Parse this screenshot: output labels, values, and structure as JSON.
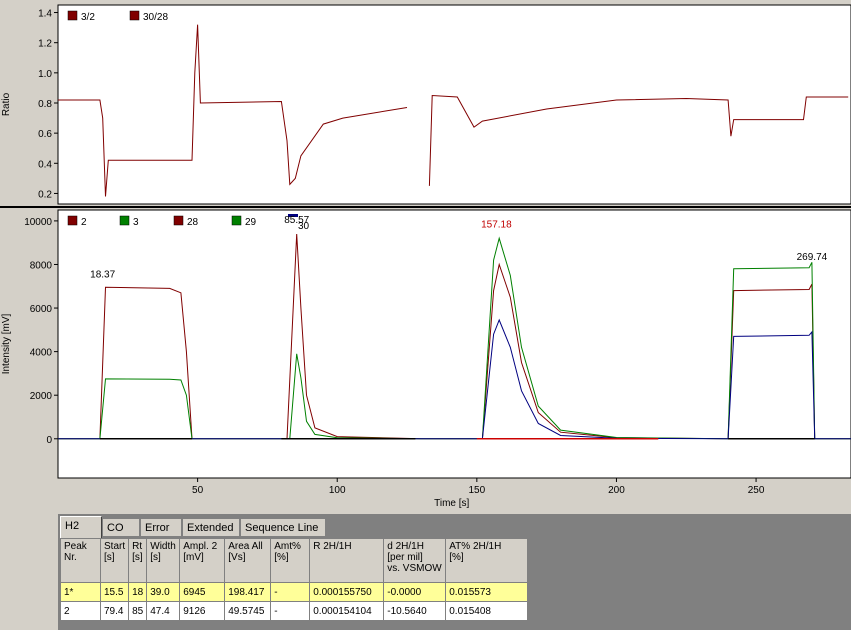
{
  "chart_data": [
    {
      "type": "line",
      "ylabel": "Ratio",
      "ylim": [
        0.13,
        1.45
      ],
      "yticks": [
        "1.4",
        "1.2",
        "1.0",
        "0.8",
        "0.6",
        "0.4",
        "0.2"
      ],
      "legend": [
        {
          "name": "3/2",
          "color": "#800000"
        },
        {
          "name": "30/28",
          "color": "#800000"
        }
      ],
      "series": [
        {
          "name": "30/28",
          "color": "#800000",
          "points": [
            [
              0,
              0.82
            ],
            [
              15,
              0.82
            ],
            [
              16,
              0.7
            ],
            [
              17,
              0.18
            ],
            [
              18,
              0.42
            ],
            [
              48,
              0.42
            ],
            [
              49,
              1.0
            ],
            [
              50,
              1.32
            ],
            [
              51,
              0.8
            ],
            [
              80,
              0.81
            ],
            [
              82,
              0.55
            ],
            [
              83,
              0.26
            ],
            [
              85,
              0.3
            ],
            [
              87,
              0.45
            ],
            [
              95,
              0.66
            ],
            [
              102,
              0.7
            ],
            [
              125,
              0.77
            ],
            [
              126,
              null
            ],
            [
              133,
              0.25
            ],
            [
              134,
              0.85
            ],
            [
              143,
              0.84
            ],
            [
              149,
              0.64
            ],
            [
              152,
              0.68
            ],
            [
              175,
              0.76
            ],
            [
              200,
              0.82
            ],
            [
              225,
              0.83
            ],
            [
              240,
              0.82
            ],
            [
              241,
              0.58
            ],
            [
              242,
              0.69
            ],
            [
              267,
              0.69
            ],
            [
              268,
              0.84
            ],
            [
              283,
              0.84
            ]
          ]
        }
      ]
    },
    {
      "type": "line",
      "xlabel": "Time [s]",
      "ylabel": "Intensity [mV]",
      "xlim": [
        0,
        284
      ],
      "ylim": [
        -1800,
        10500
      ],
      "xticks": [
        "50",
        "100",
        "150",
        "200",
        "250"
      ],
      "yticks": [
        "10000",
        "8000",
        "6000",
        "4000",
        "2000",
        "0"
      ],
      "legend": [
        {
          "name": "2",
          "color": "#800000"
        },
        {
          "name": "3",
          "color": "#008000"
        },
        {
          "name": "28",
          "color": "#800000"
        },
        {
          "name": "29",
          "color": "#008000"
        },
        {
          "name": "30",
          "color": "#000080"
        }
      ],
      "annotations": [
        {
          "text": "18.37",
          "x": 16,
          "y": 7400,
          "color": "#000000"
        },
        {
          "text": "85.57",
          "x": 85.5,
          "y": 9900,
          "color": "#000000"
        },
        {
          "text": "157.18",
          "x": 157,
          "y": 9700,
          "color": "#c00000"
        },
        {
          "text": "269.74",
          "x": 270,
          "y": 8200,
          "color": "#000000"
        }
      ],
      "series": [
        {
          "name": "2",
          "color": "#800000",
          "points": [
            [
              0,
              0
            ],
            [
              15,
              0
            ],
            [
              17,
              6950
            ],
            [
              40,
              6900
            ],
            [
              44,
              6700
            ],
            [
              46,
              4000
            ],
            [
              48,
              0
            ],
            [
              82,
              0
            ],
            [
              85.5,
              9400
            ],
            [
              87,
              6000
            ],
            [
              89,
              2000
            ],
            [
              92,
              500
            ],
            [
              100,
              100
            ],
            [
              130,
              0
            ],
            [
              152,
              0
            ],
            [
              156,
              6800
            ],
            [
              158,
              8000
            ],
            [
              162,
              6500
            ],
            [
              166,
              3500
            ],
            [
              172,
              1200
            ],
            [
              180,
              300
            ],
            [
              200,
              50
            ],
            [
              240,
              0
            ],
            [
              242,
              6800
            ],
            [
              269,
              6850
            ],
            [
              270,
              7100
            ],
            [
              271,
              0
            ],
            [
              284,
              0
            ]
          ]
        },
        {
          "name": "3",
          "color": "#008000",
          "points": [
            [
              0,
              0
            ],
            [
              15,
              0
            ],
            [
              17,
              2750
            ],
            [
              40,
              2730
            ],
            [
              44,
              2700
            ],
            [
              46,
              2000
            ],
            [
              48,
              0
            ],
            [
              83,
              0
            ],
            [
              85.5,
              3900
            ],
            [
              87,
              2800
            ],
            [
              89,
              800
            ],
            [
              92,
              200
            ],
            [
              100,
              50
            ],
            [
              130,
              0
            ],
            [
              152,
              0
            ],
            [
              156,
              8200
            ],
            [
              158,
              9200
            ],
            [
              162,
              7500
            ],
            [
              166,
              4200
            ],
            [
              172,
              1500
            ],
            [
              180,
              400
            ],
            [
              200,
              60
            ],
            [
              240,
              0
            ],
            [
              242,
              7800
            ],
            [
              269,
              7850
            ],
            [
              270,
              8100
            ],
            [
              271,
              0
            ],
            [
              284,
              0
            ]
          ]
        },
        {
          "name": "30",
          "color": "#000080",
          "points": [
            [
              0,
              0
            ],
            [
              152,
              0
            ],
            [
              156,
              4800
            ],
            [
              158,
              5450
            ],
            [
              162,
              4200
            ],
            [
              166,
              2200
            ],
            [
              172,
              700
            ],
            [
              180,
              150
            ],
            [
              200,
              20
            ],
            [
              240,
              0
            ],
            [
              242,
              4700
            ],
            [
              269,
              4750
            ],
            [
              270,
              4900
            ],
            [
              271,
              0
            ],
            [
              284,
              0
            ]
          ]
        },
        {
          "name": "baseline",
          "color": "#cc0000",
          "points": [
            [
              150,
              0
            ],
            [
              215,
              0
            ]
          ]
        }
      ]
    }
  ],
  "tabs": [
    {
      "label": "H2",
      "active": true
    },
    {
      "label": "CO"
    },
    {
      "label": "Error"
    },
    {
      "label": "Extended"
    },
    {
      "label": "Sequence Line"
    }
  ],
  "table": {
    "headers": [
      "Peak Nr.",
      "Start\n[s]",
      "Rt\n[s]",
      "Width\n[s]",
      "Ampl. 2\n[mV]",
      "Area All\n[Vs]",
      "Amt%\n[%]",
      "R 2H/1H",
      "d 2H/1H\n[per mil]\nvs. VSMOW",
      "AT% 2H/1H\n[%]"
    ],
    "rows": [
      [
        "1*",
        "15.5",
        "18",
        "39.0",
        "6945",
        "198.417",
        "-",
        "0.000155750",
        "-0.0000",
        "0.015573"
      ],
      [
        "2",
        "79.4",
        "85",
        "47.4",
        "9126",
        "49.5745",
        "-",
        "0.000154104",
        "-10.5640",
        "0.015408"
      ]
    ]
  }
}
